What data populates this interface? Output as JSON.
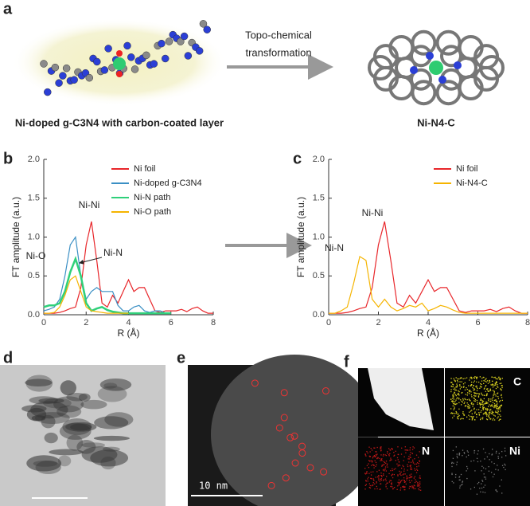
{
  "panel_labels": [
    "a",
    "b",
    "c",
    "d",
    "e",
    "f"
  ],
  "scheme": {
    "left_caption": "Ni-doped g-C3N4 with carbon-coated layer",
    "arrow_text": [
      "Topo-chemical",
      "transformation"
    ],
    "right_caption": "Ni-N4-C"
  },
  "microscopy": {
    "scale_bar": "10 nm",
    "maps": [
      "C",
      "N",
      "Ni"
    ]
  },
  "chart_data": [
    {
      "type": "line",
      "xlabel": "R (Å)",
      "ylabel": "FT amplitude (a.u.)",
      "x": [
        0,
        0.25,
        0.5,
        0.75,
        1,
        1.25,
        1.5,
        1.75,
        2,
        2.25,
        2.5,
        2.75,
        3,
        3.25,
        3.5,
        3.75,
        4,
        4.25,
        4.5,
        4.75,
        5,
        5.25,
        5.5,
        5.75,
        6,
        6.25,
        6.5,
        6.75,
        7,
        7.25,
        7.5,
        7.75,
        8
      ],
      "xlim": [
        0,
        8
      ],
      "xticks": [
        0,
        2,
        4,
        6,
        8
      ],
      "ylim": [
        0,
        2
      ],
      "yticks": [
        {
          "value": 0,
          "label": "0.0"
        },
        0.5,
        {
          "value": 1,
          "label": "1.0"
        },
        1.5,
        {
          "value": 2,
          "label": "2.0"
        }
      ],
      "legend": "upper right",
      "annotations": [
        "Ni-Ni",
        "Ni-O",
        "Ni-N"
      ],
      "series": [
        {
          "name": "Ni foil",
          "color": "#e8262a",
          "values": [
            0.02,
            0.02,
            0.02,
            0.03,
            0.05,
            0.08,
            0.1,
            0.35,
            0.9,
            1.2,
            0.7,
            0.15,
            0.1,
            0.25,
            0.15,
            0.3,
            0.45,
            0.3,
            0.35,
            0.35,
            0.2,
            0.05,
            0.03,
            0.05,
            0.05,
            0.05,
            0.07,
            0.04,
            0.08,
            0.1,
            0.05,
            0.02,
            0.02
          ]
        },
        {
          "name": "Ni-doped g-C3N4",
          "color": "#3a8fc4",
          "values": [
            0.05,
            0.07,
            0.1,
            0.2,
            0.5,
            0.9,
            1.0,
            0.5,
            0.2,
            0.3,
            0.35,
            0.3,
            0.3,
            0.3,
            0.12,
            0.05,
            0.05,
            0.1,
            0.12,
            0.05,
            0.03,
            0.05,
            0.05,
            0.02,
            0.02,
            null,
            null,
            null,
            null,
            null,
            null,
            null,
            null
          ]
        },
        {
          "name": "Ni-N path",
          "color": "#2fd07a",
          "values": [
            0.1,
            0.12,
            0.12,
            0.15,
            0.3,
            0.55,
            0.72,
            0.5,
            0.15,
            0.05,
            0.08,
            0.1,
            0.06,
            0.04,
            0.03,
            0.02,
            0.02,
            0.02,
            0.02,
            0.02,
            0.02,
            0.02,
            0.02,
            0.02,
            0.02,
            null,
            null,
            null,
            null,
            null,
            null,
            null,
            null
          ]
        },
        {
          "name": "Ni-O path",
          "color": "#f5b400",
          "values": [
            0.02,
            0.02,
            0.03,
            0.1,
            0.25,
            0.45,
            0.5,
            0.3,
            0.1,
            0.05,
            0.04,
            0.03,
            0.02,
            0.02,
            0.02,
            0.02,
            0.02,
            null,
            null,
            null,
            null,
            null,
            null,
            null,
            null,
            null,
            null,
            null,
            null,
            null,
            null,
            null,
            null
          ]
        }
      ]
    },
    {
      "type": "line",
      "xlabel": "R (Å)",
      "ylabel": "FT amplitude (a.u.)",
      "x": [
        0,
        0.25,
        0.5,
        0.75,
        1,
        1.25,
        1.5,
        1.75,
        2,
        2.25,
        2.5,
        2.75,
        3,
        3.25,
        3.5,
        3.75,
        4,
        4.25,
        4.5,
        4.75,
        5,
        5.25,
        5.5,
        5.75,
        6,
        6.25,
        6.5,
        6.75,
        7,
        7.25,
        7.5,
        7.75,
        8
      ],
      "xlim": [
        0,
        8
      ],
      "xticks": [
        0,
        2,
        4,
        6,
        8
      ],
      "ylim": [
        0,
        2
      ],
      "yticks": [
        {
          "value": 0,
          "label": "0.0"
        },
        0.5,
        {
          "value": 1,
          "label": "1.0"
        },
        1.5,
        {
          "value": 2,
          "label": "2.0"
        }
      ],
      "legend": "upper right",
      "annotations": [
        "Ni-Ni",
        "Ni-N"
      ],
      "series": [
        {
          "name": "Ni foil",
          "color": "#e8262a",
          "values": [
            0.02,
            0.02,
            0.02,
            0.03,
            0.05,
            0.08,
            0.1,
            0.35,
            0.9,
            1.2,
            0.7,
            0.15,
            0.1,
            0.25,
            0.15,
            0.3,
            0.45,
            0.3,
            0.35,
            0.35,
            0.2,
            0.05,
            0.03,
            0.05,
            0.05,
            0.05,
            0.07,
            0.04,
            0.08,
            0.1,
            0.05,
            0.02,
            0.02
          ]
        },
        {
          "name": "Ni-N4-C",
          "color": "#f5b400",
          "values": [
            0.02,
            0.02,
            0.05,
            0.1,
            0.4,
            0.75,
            0.7,
            0.2,
            0.1,
            0.2,
            0.1,
            0.05,
            0.08,
            0.12,
            0.1,
            0.15,
            0.05,
            0.08,
            0.12,
            0.1,
            0.06,
            0.03,
            0.02,
            0.02,
            0.02,
            0.02,
            0.02,
            0.02,
            0.02,
            0.02,
            0.02,
            0.02,
            0.02
          ]
        }
      ]
    }
  ]
}
